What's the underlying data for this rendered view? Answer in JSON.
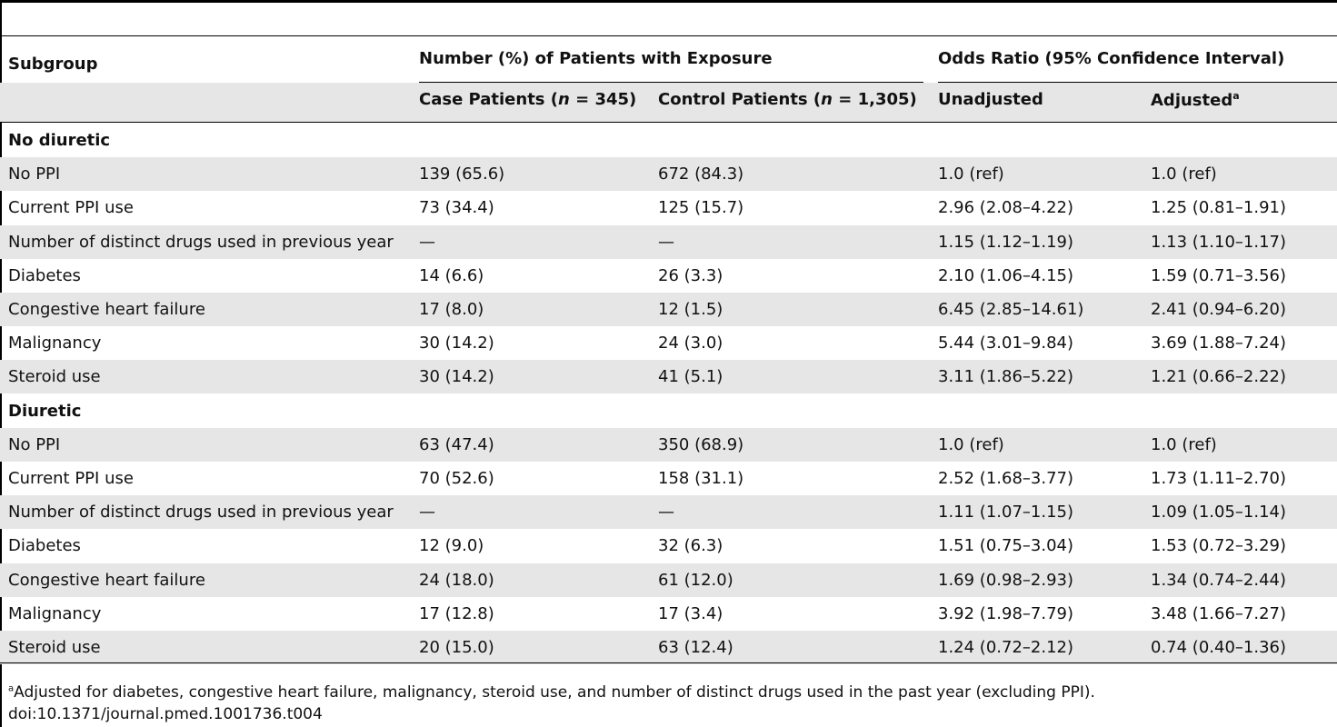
{
  "headers": {
    "subgroup": "Subgroup",
    "exposure_group": "Number (%) of Patients with Exposure",
    "odds_group": "Odds Ratio (95% Confidence Interval)",
    "case_prefix": "Case Patients (",
    "case_n": "n",
    "case_suffix": " = 345)",
    "control_prefix": "Control Patients (",
    "control_n": "n",
    "control_suffix": " = 1,305)",
    "unadjusted": "Unadjusted",
    "adjusted": "Adjusted",
    "adjusted_sup": "a"
  },
  "rows": [
    {
      "type": "section",
      "label": "No diuretic"
    },
    {
      "label": "No PPI",
      "case": "139 (65.6)",
      "control": "672 (84.3)",
      "unadj": "1.0 (ref)",
      "adj": "1.0 (ref)"
    },
    {
      "label": "Current PPI use",
      "case": "73 (34.4)",
      "control": "125 (15.7)",
      "unadj": "2.96 (2.08–4.22)",
      "adj": "1.25 (0.81–1.91)"
    },
    {
      "label": "Number of distinct drugs used in previous year",
      "case": "—",
      "control": "—",
      "unadj": "1.15 (1.12–1.19)",
      "adj": "1.13 (1.10–1.17)"
    },
    {
      "label": "Diabetes",
      "case": "14 (6.6)",
      "control": "26 (3.3)",
      "unadj": "2.10 (1.06–4.15)",
      "adj": "1.59 (0.71–3.56)"
    },
    {
      "label": "Congestive heart failure",
      "case": "17 (8.0)",
      "control": "12 (1.5)",
      "unadj": "6.45 (2.85–14.61)",
      "adj": "2.41 (0.94–6.20)"
    },
    {
      "label": "Malignancy",
      "case": "30 (14.2)",
      "control": "24 (3.0)",
      "unadj": "5.44 (3.01–9.84)",
      "adj": "3.69 (1.88–7.24)"
    },
    {
      "label": "Steroid use",
      "case": "30 (14.2)",
      "control": "41 (5.1)",
      "unadj": "3.11 (1.86–5.22)",
      "adj": "1.21 (0.66–2.22)"
    },
    {
      "type": "section",
      "label": "Diuretic"
    },
    {
      "label": "No PPI",
      "case": "63 (47.4)",
      "control": "350 (68.9)",
      "unadj": "1.0 (ref)",
      "adj": "1.0 (ref)"
    },
    {
      "label": "Current PPI use",
      "case": "70 (52.6)",
      "control": "158 (31.1)",
      "unadj": "2.52 (1.68–3.77)",
      "adj": "1.73 (1.11–2.70)"
    },
    {
      "label": "Number of distinct drugs used in previous year",
      "case": "—",
      "control": "—",
      "unadj": "1.11 (1.07–1.15)",
      "adj": "1.09 (1.05–1.14)"
    },
    {
      "label": "Diabetes",
      "case": "12 (9.0)",
      "control": "32 (6.3)",
      "unadj": "1.51 (0.75–3.04)",
      "adj": "1.53 (0.72–3.29)"
    },
    {
      "label": "Congestive heart failure",
      "case": "24 (18.0)",
      "control": "61 (12.0)",
      "unadj": "1.69 (0.98–2.93)",
      "adj": "1.34 (0.74–2.44)"
    },
    {
      "label": "Malignancy",
      "case": "17 (12.8)",
      "control": "17 (3.4)",
      "unadj": "3.92 (1.98–7.79)",
      "adj": "3.48 (1.66–7.27)"
    },
    {
      "label": "Steroid use",
      "case": "20 (15.0)",
      "control": "63 (12.4)",
      "unadj": "1.24 (0.72–2.12)",
      "adj": "0.74 (0.40–1.36)"
    }
  ],
  "footnote": {
    "marker": "a",
    "text": "Adjusted for diabetes, congestive heart failure, malignancy, steroid use, and number of distinct drugs used in the past year (excluding PPI).",
    "doi": "doi:10.1371/journal.pmed.1001736.t004"
  }
}
